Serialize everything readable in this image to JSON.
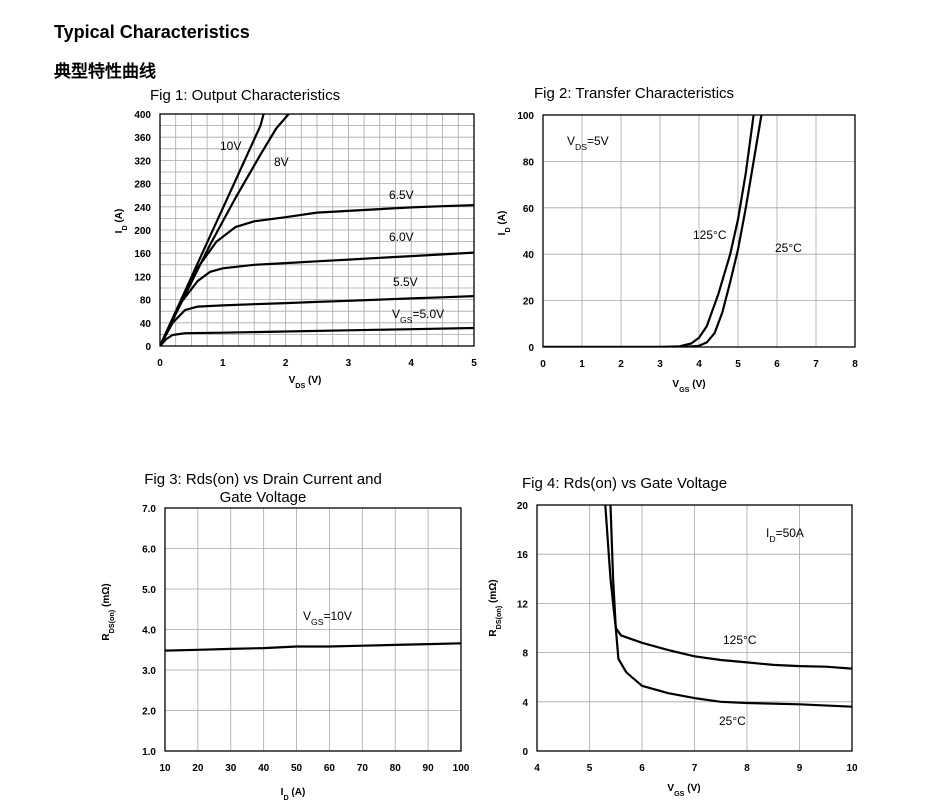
{
  "header": {
    "title": "Typical Characteristics",
    "subtitle": "典型特性曲线"
  },
  "chart_data": [
    {
      "type": "line",
      "title": "Fig 1: Output Characteristics",
      "xlabel": "V_DS (V)",
      "ylabel": "I_D (A)",
      "xlim": [
        0,
        5
      ],
      "ylim": [
        0,
        400
      ],
      "xticks": [
        0,
        1,
        2,
        3,
        4,
        5
      ],
      "yticks": [
        0,
        40,
        80,
        120,
        160,
        200,
        240,
        280,
        320,
        360,
        400
      ],
      "grid": "fine",
      "series": [
        {
          "name": "10V",
          "label": "10V",
          "x": [
            0,
            0.4,
            0.8,
            1.2,
            1.6,
            1.65
          ],
          "y": [
            0,
            95,
            190,
            285,
            380,
            400
          ]
        },
        {
          "name": "8V",
          "label": "8V",
          "x": [
            0,
            0.4,
            0.8,
            1.2,
            1.6,
            1.85,
            2.05
          ],
          "y": [
            0,
            88,
            175,
            255,
            330,
            375,
            400
          ]
        },
        {
          "name": "6.5V",
          "label": "6.5V",
          "x": [
            0,
            0.3,
            0.6,
            0.9,
            1.2,
            1.5,
            2.0,
            2.5,
            3.0,
            3.5,
            4.0,
            4.5,
            5.0
          ],
          "y": [
            0,
            70,
            135,
            180,
            205,
            215,
            222,
            230,
            233,
            236,
            239,
            241,
            243
          ]
        },
        {
          "name": "6.0V",
          "label": "6.0V",
          "x": [
            0,
            0.3,
            0.6,
            0.8,
            1.0,
            1.5,
            2.0,
            2.5,
            3.0,
            3.5,
            4.0,
            4.5,
            5.0
          ],
          "y": [
            0,
            70,
            112,
            128,
            134,
            140,
            143,
            146,
            149,
            152,
            155,
            158,
            161
          ]
        },
        {
          "name": "5.5V",
          "label": "5.5V",
          "x": [
            0,
            0.2,
            0.4,
            0.6,
            1.0,
            1.5,
            2.0,
            2.5,
            3.0,
            3.5,
            4.0,
            4.5,
            5.0
          ],
          "y": [
            0,
            40,
            62,
            68,
            70,
            72,
            74,
            76,
            78,
            80,
            82,
            84,
            86
          ]
        },
        {
          "name": "VGS=5.0V",
          "label": "V_GS=5.0V",
          "x": [
            0,
            0.1,
            0.2,
            0.4,
            1.0,
            2.0,
            3.0,
            4.0,
            5.0
          ],
          "y": [
            0,
            12,
            19,
            22,
            23,
            25,
            27,
            29,
            31
          ]
        }
      ]
    },
    {
      "type": "line",
      "title": "Fig 2: Transfer Characteristics",
      "xlabel": "V_GS (V)",
      "ylabel": "I_D (A)",
      "xlim": [
        0,
        8
      ],
      "ylim": [
        0,
        100
      ],
      "xticks": [
        0,
        1,
        2,
        3,
        4,
        5,
        6,
        7,
        8
      ],
      "yticks": [
        0,
        20,
        40,
        60,
        80,
        100
      ],
      "grid": "coarse",
      "annotations": [
        "V_DS=5V"
      ],
      "series": [
        {
          "name": "125°C",
          "label": "125°C",
          "x": [
            0,
            3.0,
            3.5,
            3.8,
            4.0,
            4.2,
            4.5,
            4.8,
            5.0,
            5.2,
            5.4
          ],
          "y": [
            0,
            0,
            0.3,
            1.5,
            4,
            9,
            23,
            40,
            55,
            75,
            100
          ]
        },
        {
          "name": "25°C",
          "label": "25°C",
          "x": [
            0,
            3.6,
            4.0,
            4.2,
            4.4,
            4.6,
            4.8,
            5.0,
            5.2,
            5.4,
            5.6
          ],
          "y": [
            0,
            0,
            0.5,
            2,
            6,
            15,
            28,
            42,
            60,
            80,
            100
          ]
        }
      ]
    },
    {
      "type": "line",
      "title": "Fig 3: Rds(on) vs Drain Current and",
      "title2": "Gate Voltage",
      "xlabel": "I_D (A)",
      "ylabel": "R_DS(on) (mΩ)",
      "xlim": [
        10,
        100
      ],
      "ylim": [
        1.0,
        7.0
      ],
      "xticks": [
        10,
        20,
        30,
        40,
        50,
        60,
        70,
        80,
        90,
        100
      ],
      "yticks": [
        1.0,
        2.0,
        3.0,
        4.0,
        5.0,
        6.0,
        7.0
      ],
      "grid": "coarse",
      "series": [
        {
          "name": "VGS=10V",
          "label": "V_GS=10V",
          "x": [
            10,
            20,
            30,
            40,
            50,
            60,
            70,
            80,
            90,
            100
          ],
          "y": [
            3.48,
            3.5,
            3.52,
            3.54,
            3.58,
            3.58,
            3.6,
            3.62,
            3.64,
            3.66
          ]
        }
      ]
    },
    {
      "type": "line",
      "title": "Fig 4: Rds(on) vs Gate Voltage",
      "xlabel": "V_GS (V)",
      "ylabel": "R_DS(on) (mΩ)",
      "xlim": [
        4,
        10
      ],
      "ylim": [
        0,
        20
      ],
      "xticks": [
        4,
        5,
        6,
        7,
        8,
        9,
        10
      ],
      "yticks": [
        0,
        4,
        8,
        12,
        16,
        20
      ],
      "grid": "coarse",
      "annotations": [
        "I_D=50A"
      ],
      "series": [
        {
          "name": "125°C",
          "label": "125°C",
          "x": [
            5.3,
            5.4,
            5.45,
            5.5,
            5.6,
            6.0,
            6.5,
            7.0,
            7.5,
            8.0,
            8.5,
            9.0,
            9.5,
            10.0
          ],
          "y": [
            20,
            14,
            12,
            10,
            9.4,
            8.8,
            8.2,
            7.7,
            7.4,
            7.2,
            7.0,
            6.9,
            6.85,
            6.7
          ]
        },
        {
          "name": "25°C",
          "label": "25°C",
          "x": [
            5.4,
            5.45,
            5.5,
            5.55,
            5.7,
            6.0,
            6.5,
            7.0,
            7.5,
            8.0,
            9.0,
            10.0
          ],
          "y": [
            20,
            14,
            10,
            7.5,
            6.4,
            5.3,
            4.7,
            4.3,
            4.0,
            3.9,
            3.8,
            3.6
          ]
        }
      ]
    }
  ]
}
